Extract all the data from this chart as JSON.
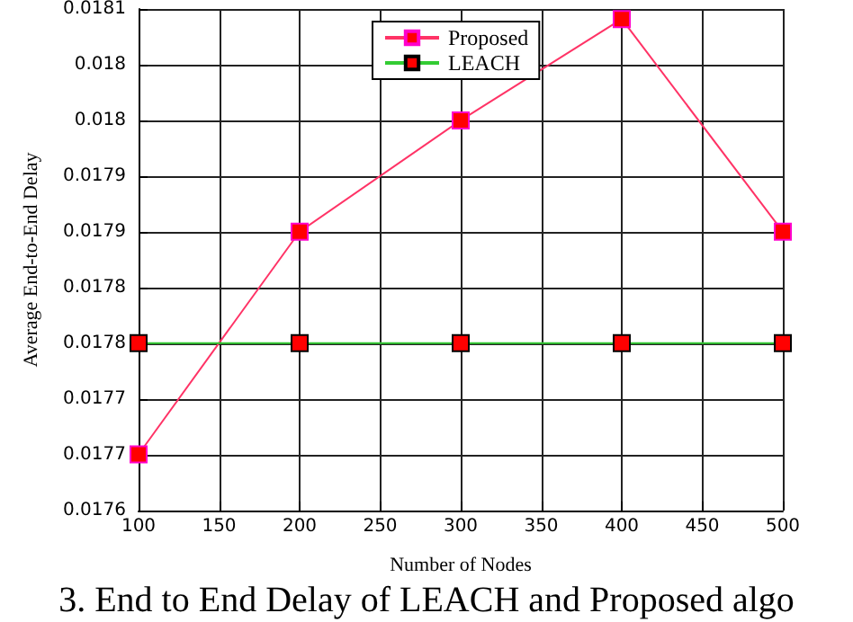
{
  "chart_data": {
    "type": "line",
    "xlabel": "Number of Nodes",
    "ylabel": "Average End-to-End Delay",
    "annotations": [
      "3. End to End Delay of LEACH and Proposed algo"
    ],
    "x": [
      100,
      200,
      300,
      400,
      500
    ],
    "series": [
      {
        "name": "Proposed",
        "color": "#ff3366",
        "values": [
          0.017656,
          0.017878,
          0.017989,
          0.01809,
          0.017878
        ]
      },
      {
        "name": "LEACH",
        "color": "#33cc33",
        "values": [
          0.017767,
          0.017767,
          0.017767,
          0.017767,
          0.017767
        ]
      }
    ],
    "xlim": [
      100,
      500
    ],
    "xticks": [
      100,
      150,
      200,
      250,
      300,
      350,
      400,
      450,
      500
    ],
    "ylim": [
      0.0176,
      0.0181
    ],
    "yticks": [
      {
        "value": 0.0176,
        "label": "0.0176"
      },
      {
        "value": 0.017656,
        "label": "0.0177"
      },
      {
        "value": 0.017711,
        "label": "0.0177"
      },
      {
        "value": 0.017767,
        "label": "0.0178"
      },
      {
        "value": 0.017822,
        "label": "0.0178"
      },
      {
        "value": 0.017878,
        "label": "0.0179"
      },
      {
        "value": 0.017933,
        "label": "0.0179"
      },
      {
        "value": 0.017989,
        "label": "0.018"
      },
      {
        "value": 0.018044,
        "label": "0.018"
      },
      {
        "value": 0.0181,
        "label": "0.0181"
      }
    ],
    "grid": true,
    "legend": "top right",
    "marker": "square",
    "line_style": "solid"
  }
}
